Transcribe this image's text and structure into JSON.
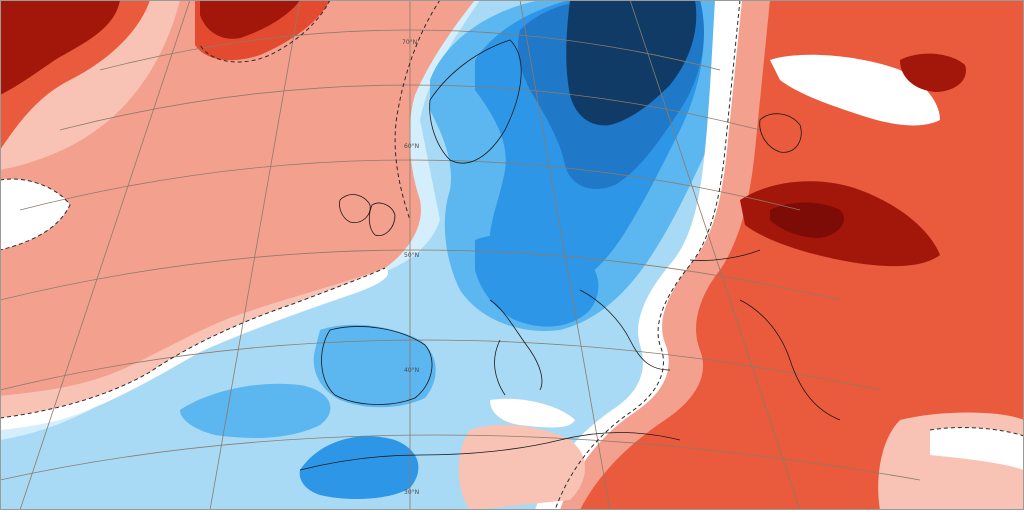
{
  "map": {
    "latitude_labels": [
      "70°N",
      "60°N",
      "50°N",
      "40°N",
      "30°N"
    ]
  },
  "palette": {
    "deep_blue": "#0f3b66",
    "dark_blue": "#1f78c8",
    "mid_blue": "#2e96e6",
    "blue": "#5cb6f0",
    "light_blue": "#a8daf6",
    "pale_blue": "#d4eefb",
    "white": "#ffffff",
    "pale_red": "#f8c3b4",
    "light_red": "#f4a08f",
    "red": "#ea5a3d",
    "mid_red": "#e34a2f",
    "dark_red": "#a3160a",
    "deep_red": "#7e0c06",
    "coastline": "#1a1a1a",
    "graticule": "#8c7b6a"
  }
}
